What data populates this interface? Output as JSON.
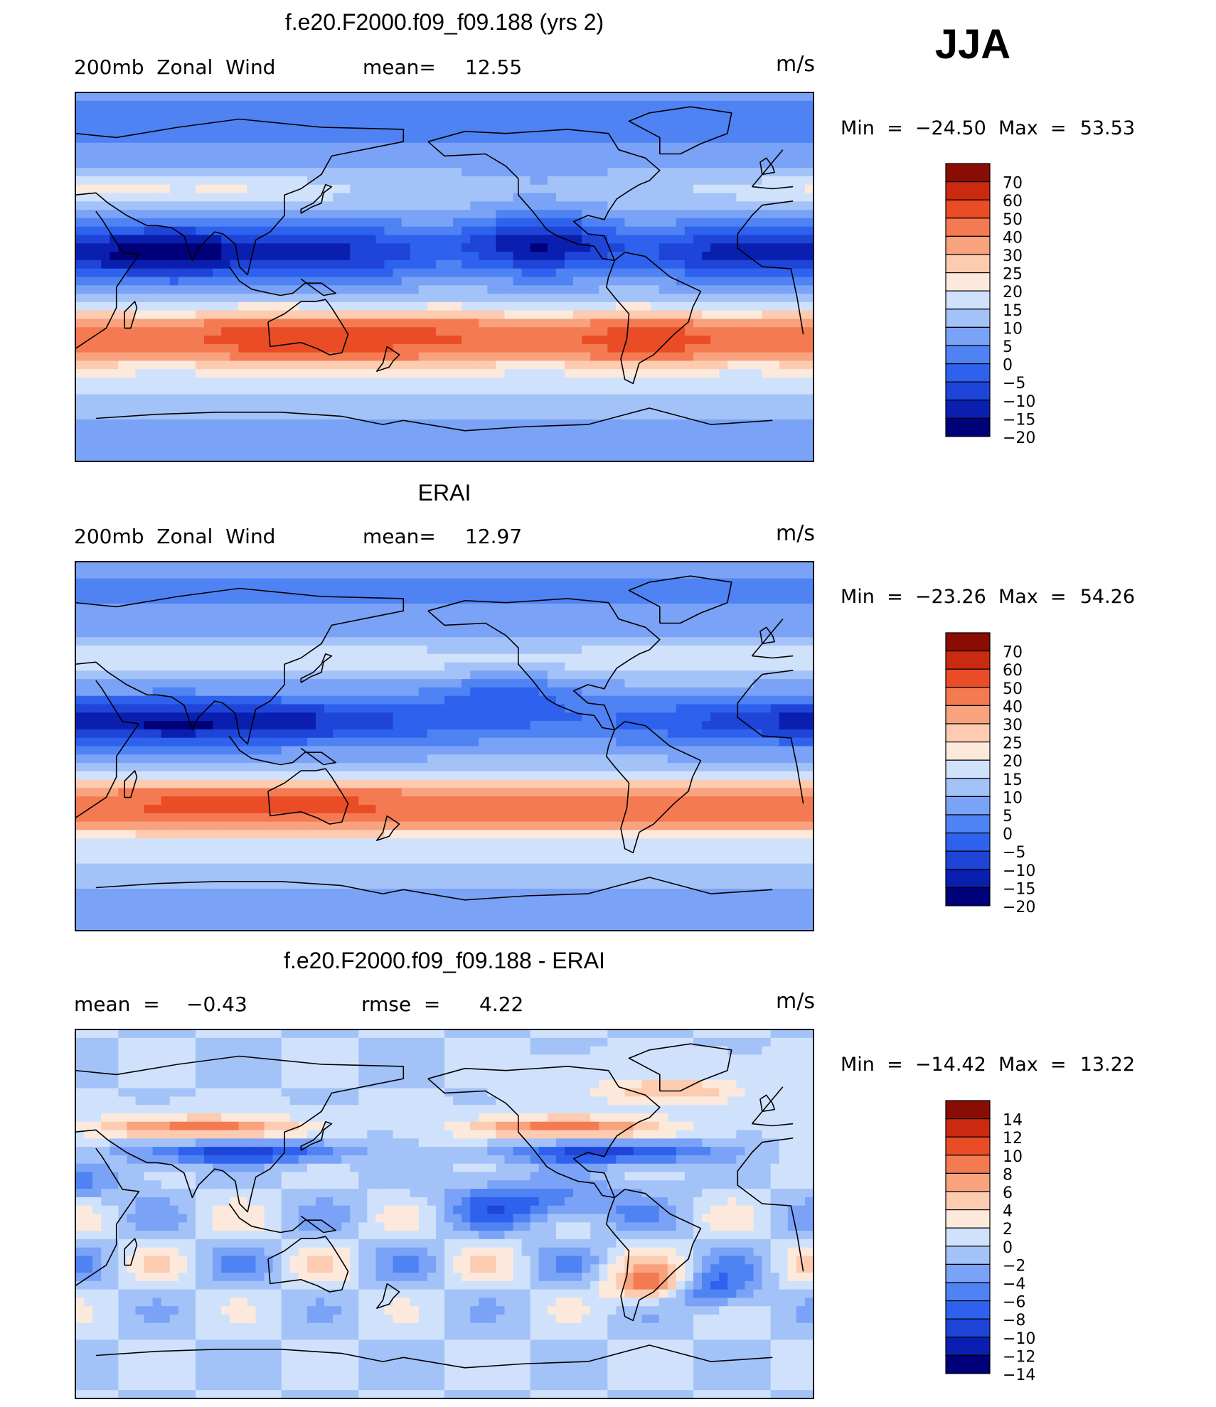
{
  "season": "JJA",
  "palette_main": [
    "#00007a",
    "#0a1fb0",
    "#1f44d8",
    "#2e62ee",
    "#4f82f3",
    "#7aa2f6",
    "#a3c2f8",
    "#d0e2fb",
    "#fde9dc",
    "#fccbb0",
    "#f9a27e",
    "#f47a52",
    "#ea4c26",
    "#c92a10",
    "#8a0d05"
  ],
  "palette_diff": [
    "#00007a",
    "#0a1fb0",
    "#1f44d8",
    "#2e62ee",
    "#4f82f3",
    "#7aa2f6",
    "#a3c2f8",
    "#d0e2fb",
    "#fde9dc",
    "#fccbb0",
    "#f9a27e",
    "#f47a52",
    "#ea4c26",
    "#c92a10",
    "#8a0d05"
  ],
  "coast_color": "#000000",
  "chart_data": [
    {
      "type": "heatmap",
      "title": "f.e20.F2000.f09_f09.188 (yrs 2)",
      "left_label": "200mb  Zonal  Wind",
      "mean_label": "mean=",
      "mean_value": "12.55",
      "units": "m/s",
      "min_label": "Min  =  −24.50  Max  =",
      "max_value": "53.53",
      "colorbar_levels": [
        "70",
        "60",
        "50",
        "40",
        "30",
        "25",
        "20",
        "15",
        "10",
        "5",
        "0",
        "−5",
        "−10",
        "−15",
        "−20"
      ],
      "field": "zonal_wind_model",
      "range": [
        -24.5,
        53.53
      ]
    },
    {
      "type": "heatmap",
      "title": "ERAI",
      "left_label": "200mb  Zonal  Wind",
      "mean_label": "mean=",
      "mean_value": "12.97",
      "units": "m/s",
      "min_label": "Min  =  −23.26  Max  =",
      "max_value": "54.26",
      "colorbar_levels": [
        "70",
        "60",
        "50",
        "40",
        "30",
        "25",
        "20",
        "15",
        "10",
        "5",
        "0",
        "−5",
        "−10",
        "−15",
        "−20"
      ],
      "field": "zonal_wind_obs",
      "range": [
        -23.26,
        54.26
      ]
    },
    {
      "type": "heatmap",
      "title": "f.e20.F2000.f09_f09.188 - ERAI",
      "left_label": "mean  =",
      "mean_label": "−0.43",
      "rmse_label": "rmse  =",
      "rmse_value": "4.22",
      "units": "m/s",
      "min_label": "Min  =  −14.42  Max  =",
      "max_value": "13.22",
      "colorbar_levels": [
        "14",
        "12",
        "10",
        "8",
        "6",
        "4",
        "2",
        "0",
        "−2",
        "−4",
        "−6",
        "−8",
        "−10",
        "−12",
        "−14"
      ],
      "field": "zonal_wind_diff",
      "range": [
        -14.42,
        13.22
      ]
    }
  ]
}
